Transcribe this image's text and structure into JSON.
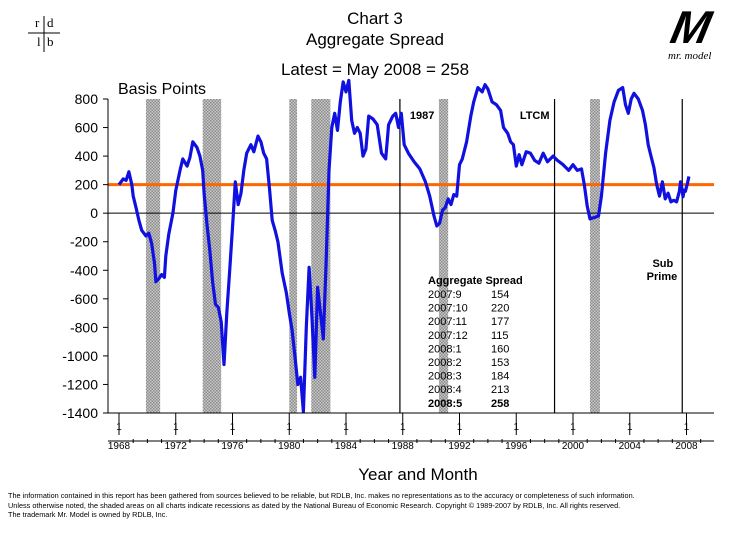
{
  "header": {
    "title_line1": "Chart 3",
    "title_line2": "Aggregate Spread",
    "latest": "Latest = May 2008 = 258",
    "ylabel": "Basis  Points",
    "xlabel": "Year  and  Month"
  },
  "logo_left": {
    "tl": "r",
    "tr": "d",
    "bl": "l",
    "br": "b"
  },
  "logo_right": {
    "mark": "M",
    "text": "mr. model"
  },
  "colors": {
    "line": "#1010e0",
    "refline": "#ff6600",
    "shade": "#a9a9a9",
    "axis": "#000000"
  },
  "chart_data": {
    "type": "line",
    "title": "Aggregate Spread",
    "ylabel": "Basis  Points",
    "xlabel": "Year  and  Month",
    "ylim": [
      -1400,
      800
    ],
    "xlim": [
      1968,
      2009
    ],
    "yticks": [
      800,
      600,
      400,
      200,
      0,
      -200,
      -400,
      -600,
      -800,
      -1000,
      -1200,
      -1400
    ],
    "xticks": [
      1968,
      1972,
      1976,
      1980,
      1984,
      1988,
      1992,
      1996,
      2000,
      2004,
      2008
    ],
    "xtick_top": "1",
    "refline": {
      "y": 200,
      "color": "#ff6600"
    },
    "recessions": [
      [
        1969.9,
        1970.9
      ],
      [
        1973.9,
        1975.2
      ],
      [
        1980.0,
        1980.55
      ],
      [
        1981.55,
        1982.9
      ],
      [
        1990.55,
        1991.2
      ],
      [
        2001.2,
        2001.9
      ]
    ],
    "events": [
      {
        "x": 1987.8,
        "label": "1987",
        "label_side": "right"
      },
      {
        "x": 1998.7,
        "label": "LTCM",
        "label_side": "left"
      },
      {
        "x": 2007.7,
        "label": "Sub\nPrime",
        "label_side": "left"
      }
    ],
    "series": [
      {
        "values": [
          [
            1968.0,
            200
          ],
          [
            1968.3,
            240
          ],
          [
            1968.5,
            230
          ],
          [
            1968.7,
            290
          ],
          [
            1968.9,
            200
          ],
          [
            1969.0,
            120
          ],
          [
            1969.2,
            40
          ],
          [
            1969.4,
            -50
          ],
          [
            1969.6,
            -120
          ],
          [
            1969.9,
            -160
          ],
          [
            1970.1,
            -140
          ],
          [
            1970.3,
            -210
          ],
          [
            1970.5,
            -350
          ],
          [
            1970.6,
            -480
          ],
          [
            1970.8,
            -460
          ],
          [
            1971.0,
            -430
          ],
          [
            1971.2,
            -450
          ],
          [
            1971.3,
            -300
          ],
          [
            1971.5,
            -150
          ],
          [
            1971.8,
            0
          ],
          [
            1972.0,
            160
          ],
          [
            1972.3,
            300
          ],
          [
            1972.5,
            380
          ],
          [
            1972.8,
            330
          ],
          [
            1973.0,
            390
          ],
          [
            1973.2,
            500
          ],
          [
            1973.5,
            460
          ],
          [
            1973.7,
            400
          ],
          [
            1973.9,
            300
          ],
          [
            1974.0,
            140
          ],
          [
            1974.2,
            -80
          ],
          [
            1974.4,
            -260
          ],
          [
            1974.6,
            -480
          ],
          [
            1974.8,
            -640
          ],
          [
            1975.0,
            -660
          ],
          [
            1975.2,
            -760
          ],
          [
            1975.4,
            -1060
          ],
          [
            1975.6,
            -700
          ],
          [
            1975.8,
            -400
          ],
          [
            1976.0,
            -100
          ],
          [
            1976.2,
            220
          ],
          [
            1976.4,
            60
          ],
          [
            1976.6,
            140
          ],
          [
            1976.8,
            300
          ],
          [
            1977.0,
            420
          ],
          [
            1977.3,
            480
          ],
          [
            1977.5,
            430
          ],
          [
            1977.8,
            540
          ],
          [
            1978.0,
            500
          ],
          [
            1978.2,
            420
          ],
          [
            1978.4,
            380
          ],
          [
            1978.6,
            180
          ],
          [
            1978.8,
            -50
          ],
          [
            1979.0,
            -120
          ],
          [
            1979.2,
            -200
          ],
          [
            1979.5,
            -420
          ],
          [
            1979.8,
            -560
          ],
          [
            1980.0,
            -700
          ],
          [
            1980.2,
            -820
          ],
          [
            1980.4,
            -1000
          ],
          [
            1980.6,
            -1200
          ],
          [
            1980.8,
            -1150
          ],
          [
            1981.0,
            -1390
          ],
          [
            1981.2,
            -800
          ],
          [
            1981.4,
            -380
          ],
          [
            1981.6,
            -720
          ],
          [
            1981.8,
            -1150
          ],
          [
            1982.0,
            -520
          ],
          [
            1982.2,
            -700
          ],
          [
            1982.4,
            -880
          ],
          [
            1982.6,
            -350
          ],
          [
            1982.8,
            300
          ],
          [
            1983.0,
            600
          ],
          [
            1983.2,
            700
          ],
          [
            1983.4,
            580
          ],
          [
            1983.6,
            780
          ],
          [
            1983.8,
            920
          ],
          [
            1984.0,
            850
          ],
          [
            1984.2,
            930
          ],
          [
            1984.4,
            650
          ],
          [
            1984.6,
            560
          ],
          [
            1984.8,
            600
          ],
          [
            1985.0,
            560
          ],
          [
            1985.2,
            400
          ],
          [
            1985.4,
            450
          ],
          [
            1985.6,
            680
          ],
          [
            1985.9,
            660
          ],
          [
            1986.2,
            620
          ],
          [
            1986.5,
            420
          ],
          [
            1986.8,
            380
          ],
          [
            1987.0,
            620
          ],
          [
            1987.3,
            680
          ],
          [
            1987.5,
            700
          ],
          [
            1987.7,
            600
          ],
          [
            1987.9,
            700
          ],
          [
            1988.1,
            480
          ],
          [
            1988.4,
            420
          ],
          [
            1988.8,
            360
          ],
          [
            1989.2,
            310
          ],
          [
            1989.6,
            220
          ],
          [
            1989.9,
            120
          ],
          [
            1990.2,
            -20
          ],
          [
            1990.4,
            -90
          ],
          [
            1990.6,
            -70
          ],
          [
            1990.8,
            20
          ],
          [
            1991.0,
            40
          ],
          [
            1991.2,
            100
          ],
          [
            1991.4,
            60
          ],
          [
            1991.6,
            130
          ],
          [
            1991.8,
            120
          ],
          [
            1992.0,
            340
          ],
          [
            1992.2,
            380
          ],
          [
            1992.5,
            500
          ],
          [
            1992.8,
            680
          ],
          [
            1993.0,
            780
          ],
          [
            1993.3,
            880
          ],
          [
            1993.6,
            850
          ],
          [
            1993.8,
            900
          ],
          [
            1994.0,
            870
          ],
          [
            1994.3,
            780
          ],
          [
            1994.6,
            760
          ],
          [
            1994.9,
            720
          ],
          [
            1995.1,
            600
          ],
          [
            1995.4,
            560
          ],
          [
            1995.6,
            500
          ],
          [
            1995.8,
            480
          ],
          [
            1996.0,
            330
          ],
          [
            1996.2,
            410
          ],
          [
            1996.4,
            340
          ],
          [
            1996.7,
            430
          ],
          [
            1997.0,
            420
          ],
          [
            1997.3,
            370
          ],
          [
            1997.6,
            350
          ],
          [
            1997.9,
            420
          ],
          [
            1998.2,
            360
          ],
          [
            1998.6,
            400
          ],
          [
            1998.9,
            370
          ],
          [
            1999.3,
            340
          ],
          [
            1999.7,
            300
          ],
          [
            2000.0,
            340
          ],
          [
            2000.3,
            300
          ],
          [
            2000.6,
            310
          ],
          [
            2000.8,
            200
          ],
          [
            2001.0,
            50
          ],
          [
            2001.2,
            -40
          ],
          [
            2001.5,
            -30
          ],
          [
            2001.8,
            -20
          ],
          [
            2002.0,
            120
          ],
          [
            2002.3,
            420
          ],
          [
            2002.6,
            650
          ],
          [
            2002.9,
            780
          ],
          [
            2003.2,
            860
          ],
          [
            2003.5,
            880
          ],
          [
            2003.7,
            760
          ],
          [
            2003.9,
            700
          ],
          [
            2004.1,
            800
          ],
          [
            2004.3,
            840
          ],
          [
            2004.6,
            800
          ],
          [
            2004.9,
            720
          ],
          [
            2005.1,
            620
          ],
          [
            2005.3,
            480
          ],
          [
            2005.5,
            400
          ],
          [
            2005.7,
            320
          ],
          [
            2005.9,
            200
          ],
          [
            2006.1,
            120
          ],
          [
            2006.3,
            220
          ],
          [
            2006.5,
            100
          ],
          [
            2006.7,
            140
          ],
          [
            2006.9,
            80
          ],
          [
            2007.1,
            90
          ],
          [
            2007.3,
            80
          ],
          [
            2007.5,
            154
          ],
          [
            2007.58,
            220
          ],
          [
            2007.67,
            177
          ],
          [
            2007.75,
            115
          ],
          [
            2007.83,
            160
          ],
          [
            2007.92,
            153
          ],
          [
            2008.0,
            184
          ],
          [
            2008.08,
            213
          ],
          [
            2008.17,
            258
          ]
        ]
      }
    ],
    "table": {
      "title": "Aggregate Spread",
      "rows": [
        {
          "date": "2007:9",
          "value": "154",
          "bold": false
        },
        {
          "date": "2007:10",
          "value": "220",
          "bold": false
        },
        {
          "date": "2007:11",
          "value": "177",
          "bold": false
        },
        {
          "date": "2007:12",
          "value": "115",
          "bold": false
        },
        {
          "date": "2008:1",
          "value": "160",
          "bold": false
        },
        {
          "date": "2008:2",
          "value": "153",
          "bold": false
        },
        {
          "date": "2008:3",
          "value": "184",
          "bold": false
        },
        {
          "date": "2008:4",
          "value": "213",
          "bold": false
        },
        {
          "date": "2008:5",
          "value": "258",
          "bold": true
        }
      ]
    }
  },
  "footer": {
    "line1": "The information contained in this report has been gathered from sources believed to be reliable, but RDLB, Inc. makes no representations as to the accuracy or completeness of such information.",
    "line2": "Unless otherwise noted, the shaded areas on all charts indicate recessions as dated by the National Bureau of Economic Research. Copyright © 1989-2007 by RDLB, Inc.  All rights reserved.",
    "line3": "The trademark Mr. Model is owned by RDLB, Inc."
  }
}
